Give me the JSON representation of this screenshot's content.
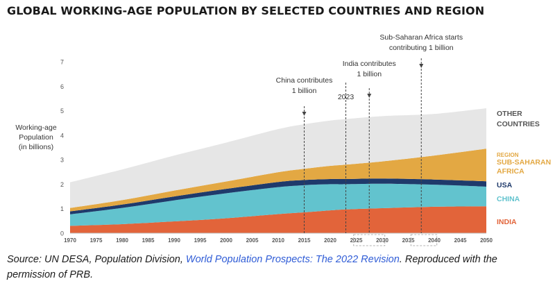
{
  "title": "GLOBAL WORKING-AGE POPULATION BY SELECTED COUNTRIES AND REGION",
  "source": {
    "prefix": "Source: UN DESA, Population Division, ",
    "link_text": "World Population Prospects: The 2022 Revision",
    "suffix": ". Reproduced with the permission of PRB."
  },
  "colors": {
    "india": "#e2643a",
    "china": "#62c3ce",
    "usa": "#1f3a6b",
    "ssa": "#e3a843",
    "other": "#e6e6e6",
    "annotation": "#444444"
  },
  "chart_data": {
    "type": "area",
    "stacked": true,
    "ylabel": [
      "Working-age",
      "Population",
      "(in billions)"
    ],
    "xlim": [
      1970,
      2050
    ],
    "ylim": [
      0,
      7
    ],
    "x_ticks": [
      "1970",
      "1975",
      "1980",
      "1985",
      "1990",
      "1995",
      "2000",
      "2005",
      "2010",
      "2015",
      "2020",
      "2025",
      "2030",
      "2035",
      "2040",
      "2045",
      "2050"
    ],
    "y_ticks": [
      "0",
      "1",
      "2",
      "3",
      "4",
      "5",
      "6",
      "7"
    ],
    "x": [
      1970,
      1980,
      1990,
      2000,
      2010,
      2015,
      2020,
      2023,
      2030,
      2040,
      2050
    ],
    "series": [
      {
        "key": "india",
        "label_lines": [
          "INDIA"
        ],
        "values": [
          0.3,
          0.37,
          0.48,
          0.61,
          0.78,
          0.85,
          0.93,
          0.97,
          1.02,
          1.08,
          1.1
        ]
      },
      {
        "key": "china",
        "label_lines": [
          "CHINA"
        ],
        "values": [
          0.47,
          0.66,
          0.86,
          1.02,
          1.1,
          1.11,
          1.07,
          1.03,
          1.0,
          0.9,
          0.8
        ]
      },
      {
        "key": "usa",
        "label_lines": [
          "USA"
        ],
        "values": [
          0.12,
          0.14,
          0.16,
          0.18,
          0.21,
          0.21,
          0.21,
          0.21,
          0.21,
          0.21,
          0.22
        ]
      },
      {
        "key": "ssa",
        "label_lines": [
          "SUB-SAHARAN",
          "AFRICA"
        ],
        "label_prefix": "REGION",
        "values": [
          0.14,
          0.18,
          0.24,
          0.3,
          0.4,
          0.46,
          0.54,
          0.59,
          0.7,
          0.98,
          1.33
        ]
      },
      {
        "key": "other",
        "label_lines": [
          "OTHER",
          "COUNTRIES"
        ],
        "values": [
          1.05,
          1.25,
          1.43,
          1.59,
          1.76,
          1.82,
          1.85,
          1.86,
          1.85,
          1.7,
          1.65
        ]
      }
    ],
    "annotations": [
      {
        "x": 2015,
        "lines": [
          "China contributes",
          "1 billion"
        ]
      },
      {
        "x": 2023,
        "lines": [
          "2023"
        ]
      },
      {
        "x": 2027.5,
        "lines": [
          "India contributes",
          "1 billion"
        ]
      },
      {
        "x": 2037.5,
        "lines": [
          "Sub-Saharan Africa starts",
          "contributing 1 billion"
        ]
      }
    ]
  }
}
